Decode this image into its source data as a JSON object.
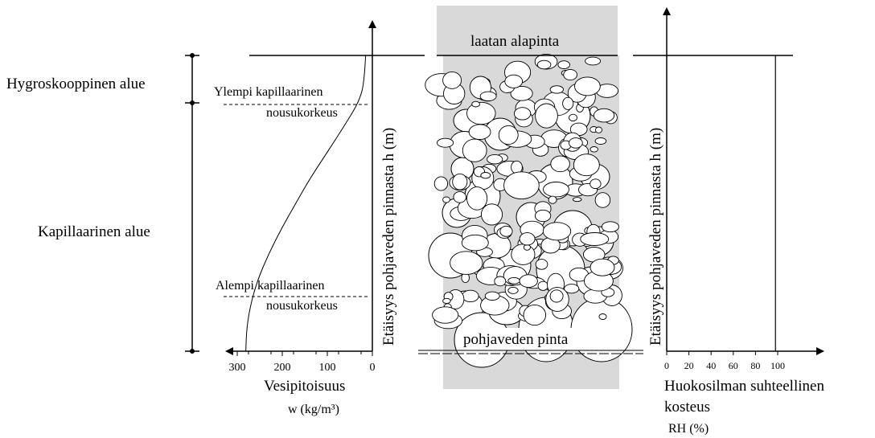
{
  "zones": {
    "hygroscopic": "Hygroskooppinen alue",
    "capillary": "Kapillaarinen alue"
  },
  "markers": {
    "upper_capillary_line1": "Ylempi kapillaarinen",
    "upper_capillary_line2": "nousukorkeus",
    "lower_capillary_line1": "Alempi kapillaarinen",
    "lower_capillary_line2": "nousukorkeus"
  },
  "vertical_axis_label": "Etäisyys pohjaveden pinnasta  h (m)",
  "soil": {
    "top_label": "laatan alapinta",
    "bottom_label": "pohjaveden pinta"
  },
  "left_chart": {
    "ticks": [
      "300",
      "200",
      "100",
      "0"
    ],
    "xlabel": "Vesipitoisuus",
    "unit": "w  (kg/m³)"
  },
  "right_chart": {
    "ticks": [
      "0",
      "20",
      "40",
      "60",
      "80",
      "100"
    ],
    "xlabel_line1": "Huokosilman suhteellinen",
    "xlabel_line2": "kosteus",
    "unit": "RH (%)"
  },
  "chart_data": [
    {
      "type": "line",
      "title": "",
      "xlabel": "Vesipitoisuus",
      "unit": "w (kg/m³)",
      "x_reversed": true,
      "xlim": [
        300,
        0
      ],
      "x_ticks": [
        300,
        200,
        100,
        0
      ],
      "series": [
        {
          "points_x_w": [
            281,
            279,
            270,
            255,
            230,
            200,
            170,
            140,
            110,
            80,
            55,
            35,
            22,
            18,
            16,
            15
          ],
          "points_h_fraction": [
            0.0,
            0.08,
            0.16,
            0.24,
            0.33,
            0.42,
            0.5,
            0.58,
            0.65,
            0.72,
            0.78,
            0.83,
            0.88,
            0.93,
            0.97,
            1.0
          ]
        }
      ]
    },
    {
      "type": "line",
      "title": "",
      "xlabel": "Huokosilman suhteellinen kosteus",
      "unit": "RH (%)",
      "xlim": [
        0,
        120
      ],
      "x_ticks": [
        0,
        20,
        40,
        60,
        80,
        100
      ],
      "series": [
        {
          "rh_percent": [
            98,
            98
          ],
          "h_fraction": [
            0.0,
            1.0
          ]
        }
      ]
    }
  ]
}
